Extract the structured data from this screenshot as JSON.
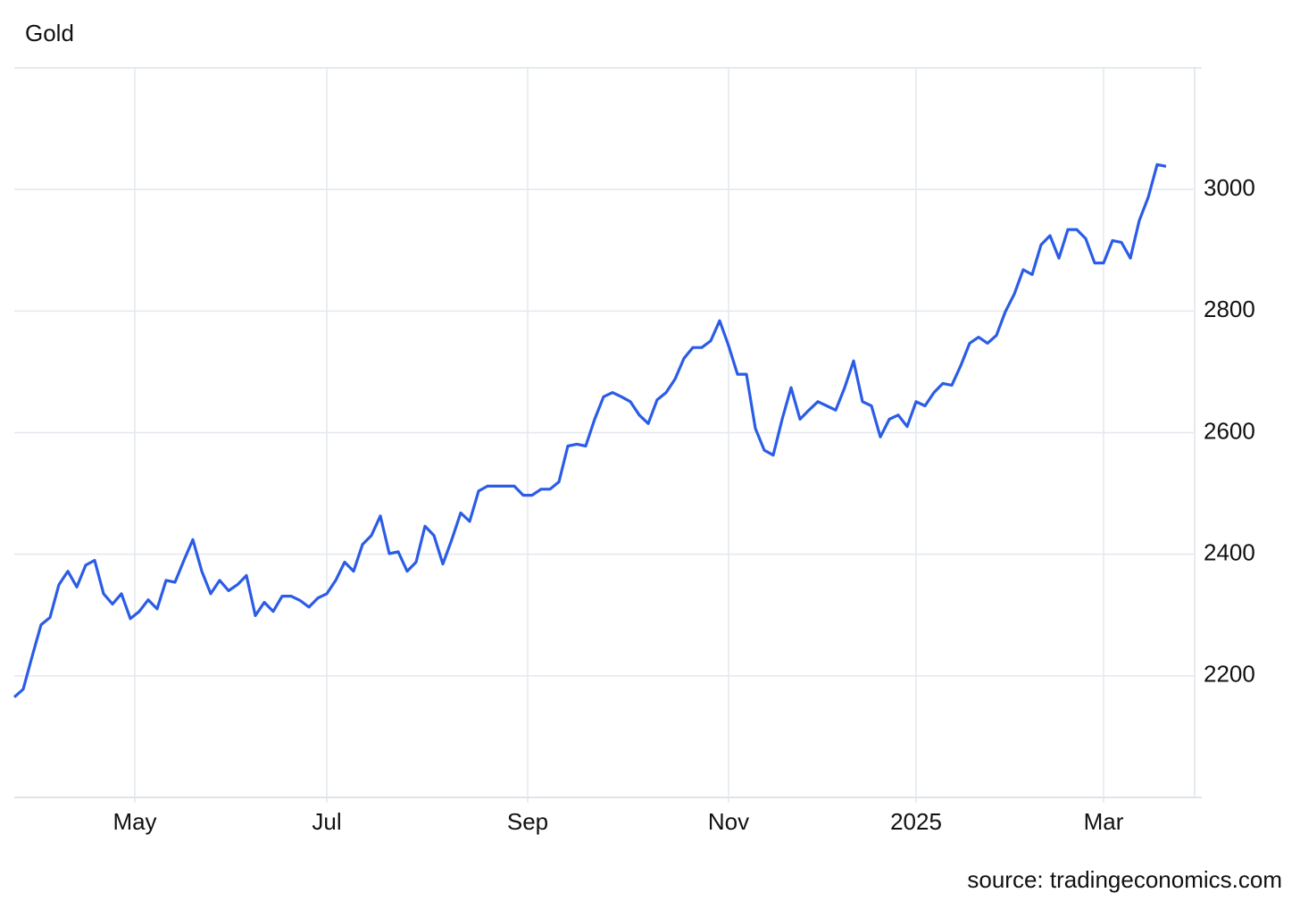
{
  "chart_data": {
    "type": "line",
    "title": "Gold",
    "source": "source: tradingeconomics.com",
    "x": [
      0,
      2,
      4,
      6,
      8,
      10,
      12,
      14,
      16,
      18,
      20,
      22,
      24,
      26,
      28,
      30,
      32,
      34,
      36,
      38,
      40,
      42,
      44,
      46,
      48,
      50,
      52,
      54,
      56,
      58,
      60,
      62,
      64,
      66,
      68,
      70,
      72,
      74,
      76,
      78,
      80,
      82,
      84,
      86,
      88,
      90,
      92,
      94,
      96,
      98,
      100,
      102,
      104,
      106,
      108,
      110,
      112,
      114,
      116,
      118,
      120,
      122,
      124,
      126,
      128,
      130,
      132,
      134,
      136,
      138,
      140,
      142,
      144,
      146,
      148,
      150,
      152,
      154,
      156,
      158,
      160,
      162,
      164,
      166,
      168,
      170,
      172,
      174,
      176,
      178,
      180,
      182,
      184,
      186,
      188,
      190,
      192,
      194,
      196,
      198,
      200,
      202,
      204,
      206,
      208,
      210,
      212,
      214,
      216,
      218,
      220,
      222,
      224,
      226,
      228,
      230,
      232,
      234,
      236,
      238,
      240,
      242,
      244,
      246,
      248,
      250,
      252,
      254,
      256,
      258
    ],
    "series": [
      {
        "name": "Gold",
        "color": "#2b5ce6",
        "values": [
          2165,
          2178,
          2232,
          2284,
          2296,
          2350,
          2372,
          2346,
          2382,
          2390,
          2335,
          2318,
          2335,
          2294,
          2306,
          2325,
          2310,
          2357,
          2354,
          2390,
          2424,
          2372,
          2335,
          2357,
          2340,
          2350,
          2365,
          2299,
          2321,
          2306,
          2331,
          2331,
          2324,
          2313,
          2328,
          2335,
          2357,
          2387,
          2372,
          2416,
          2431,
          2463,
          2401,
          2404,
          2372,
          2387,
          2446,
          2431,
          2384,
          2424,
          2468,
          2454,
          2504,
          2512,
          2512,
          2512,
          2512,
          2497,
          2497,
          2507,
          2507,
          2519,
          2578,
          2581,
          2578,
          2622,
          2659,
          2666,
          2659,
          2651,
          2629,
          2615,
          2654,
          2666,
          2688,
          2722,
          2740,
          2740,
          2751,
          2784,
          2743,
          2696,
          2696,
          2607,
          2571,
          2563,
          2622,
          2674,
          2622,
          2637,
          2651,
          2644,
          2637,
          2674,
          2718,
          2651,
          2644,
          2593,
          2622,
          2629,
          2610,
          2651,
          2644,
          2666,
          2681,
          2678,
          2710,
          2747,
          2757,
          2747,
          2760,
          2799,
          2828,
          2868,
          2860,
          2909,
          2924,
          2887,
          2934,
          2934,
          2919,
          2879,
          2879,
          2916,
          2913,
          2887,
          2949,
          2987,
          3041,
          3038
        ]
      }
    ],
    "xlim": [
      0,
      264
    ],
    "xticks": [
      {
        "value": 27,
        "label": "May"
      },
      {
        "value": 70,
        "label": "Jul"
      },
      {
        "value": 115,
        "label": "Sep"
      },
      {
        "value": 160,
        "label": "Nov"
      },
      {
        "value": 202,
        "label": "2025"
      },
      {
        "value": 244,
        "label": "Mar"
      }
    ],
    "ylim": [
      2000,
      3200
    ],
    "yticks": [
      2200,
      2400,
      2600,
      2800,
      3000
    ],
    "grid": true
  }
}
